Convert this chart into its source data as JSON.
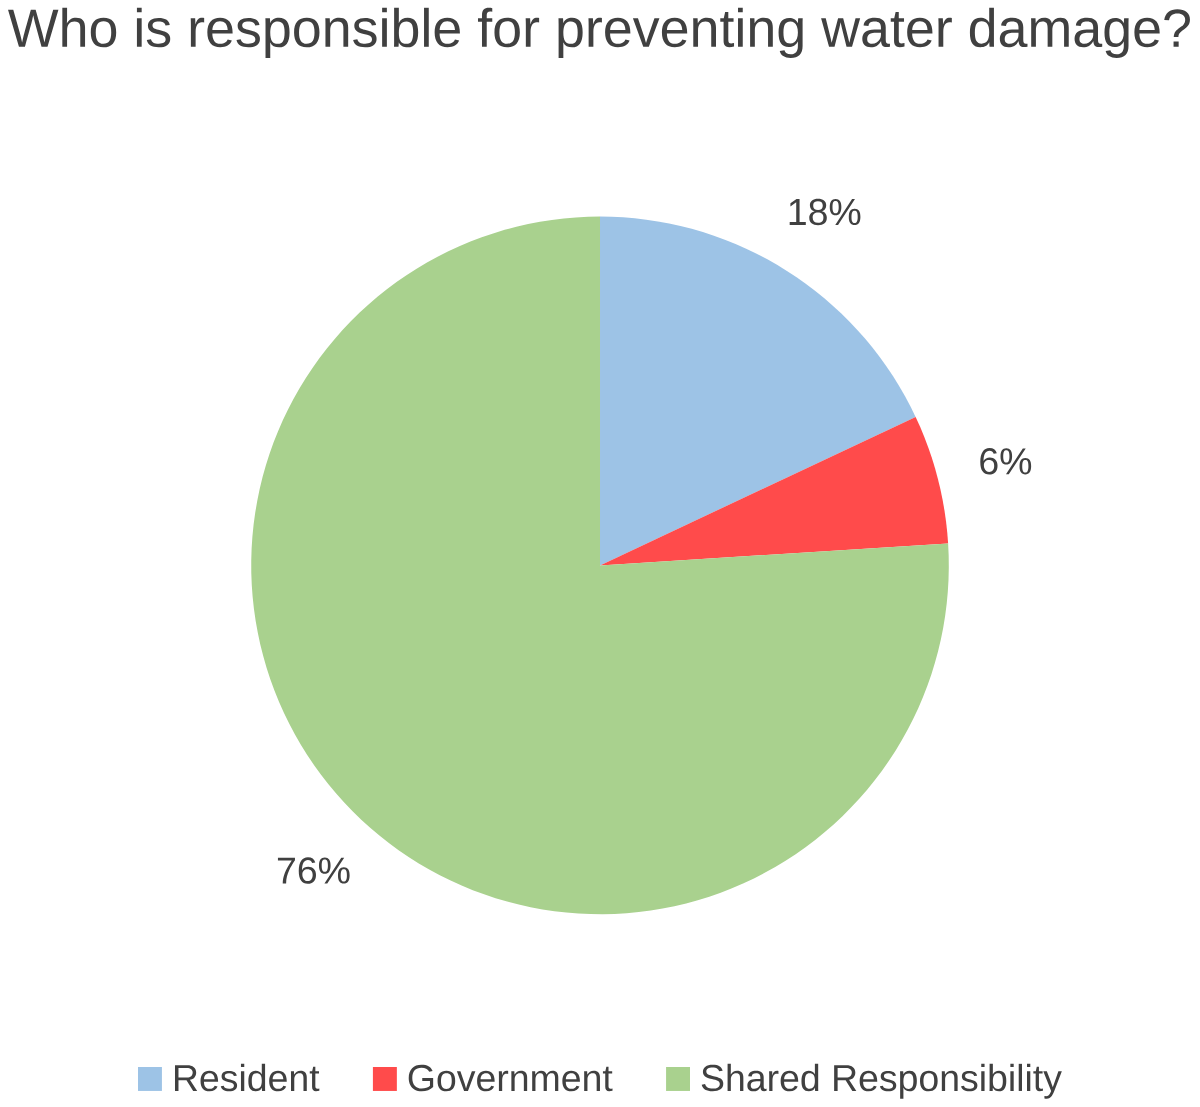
{
  "chart_data": {
    "type": "pie",
    "title": "Who is responsible for preventing water damage?",
    "categories": [
      "Resident",
      "Government",
      "Shared Responsibility"
    ],
    "values": [
      18,
      6,
      76
    ],
    "colors": [
      "#9dc3e6",
      "#ff4b4b",
      "#a9d18e"
    ],
    "value_labels": [
      "18%",
      "6%",
      "76%"
    ],
    "legend": "bottom"
  }
}
